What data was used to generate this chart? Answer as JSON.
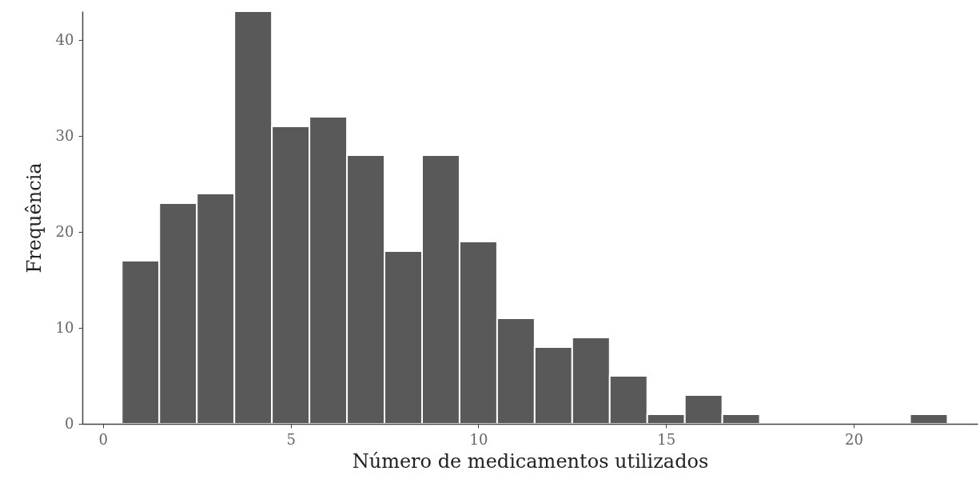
{
  "chart_data": {
    "type": "histogram",
    "xlabel": "Número de medicamentos utilizados",
    "ylabel": "Frequência",
    "bins": [
      0.5,
      1.5,
      2.5,
      3.5,
      4.5,
      5.5,
      6.5,
      7.5,
      8.5,
      9.5,
      10.5,
      11.5,
      12.5,
      13.5,
      14.5,
      15.5,
      16.5,
      17.5,
      18.5,
      19.5,
      20.5,
      21.5,
      22.5
    ],
    "values": [
      17,
      23,
      24,
      43,
      31,
      32,
      28,
      18,
      28,
      19,
      11,
      8,
      9,
      5,
      1,
      3,
      1,
      0,
      0,
      0,
      0,
      1
    ],
    "color": "#595959",
    "xlim": [
      -0.55,
      23.3
    ],
    "xticks": [
      0,
      5,
      10,
      15,
      20
    ],
    "ylim": [
      0,
      43
    ],
    "yticks": [
      0,
      10,
      20,
      30,
      40
    ],
    "grid": false
  }
}
